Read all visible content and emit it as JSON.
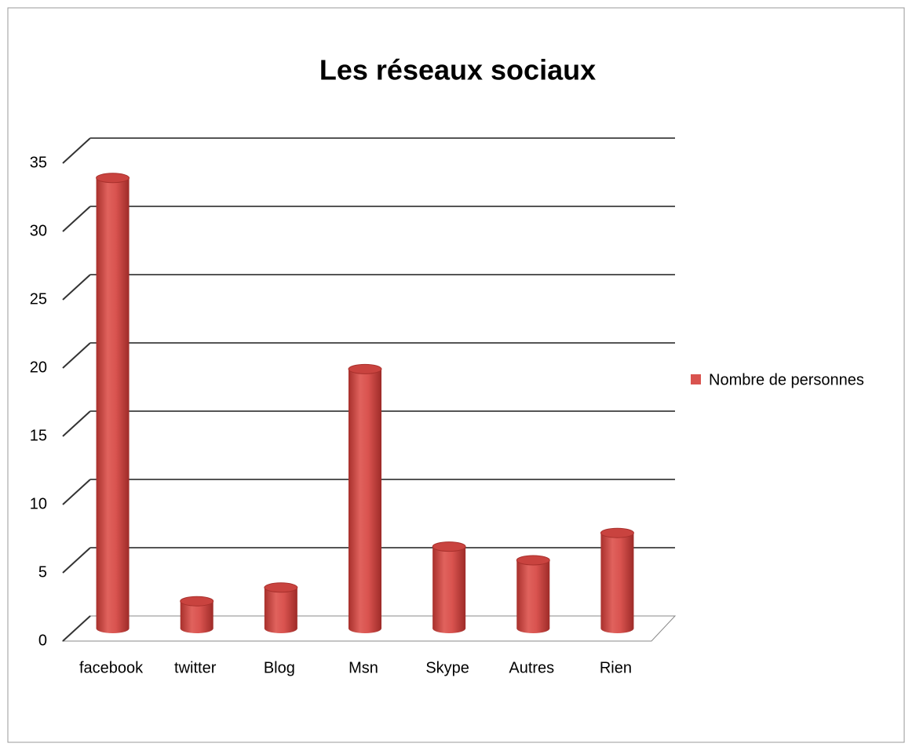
{
  "chart_data": {
    "type": "bar",
    "title": "Les réseaux sociaux",
    "categories": [
      "facebook",
      "twitter",
      "Blog",
      "Msn",
      "Skype",
      "Autres",
      "Rien"
    ],
    "series": [
      {
        "name": "Nombre de personnes",
        "color": "#d9534f",
        "values": [
          33,
          2,
          3,
          19,
          6,
          5,
          7
        ]
      }
    ],
    "ylim": [
      0,
      35
    ],
    "yticks": [
      0,
      5,
      10,
      15,
      20,
      25,
      30,
      35
    ],
    "grid": true,
    "legend": "right"
  }
}
